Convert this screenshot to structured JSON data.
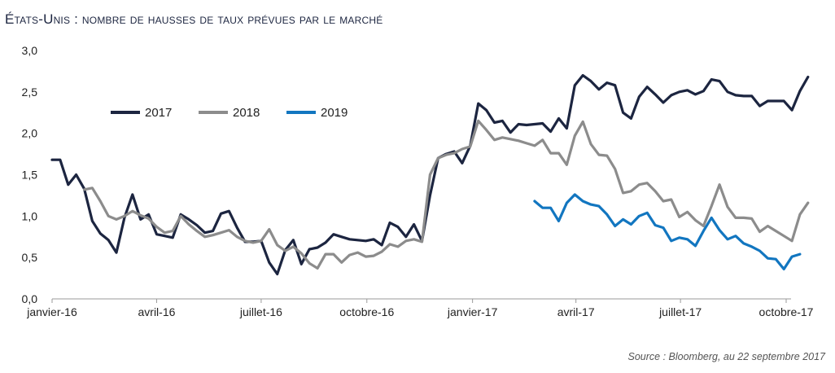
{
  "title": "États-Unis : nombre de hausses de taux prévues par le marché",
  "source": "Source : Bloomberg, au 22 septembre 2017",
  "chart_data": {
    "type": "line",
    "title": "États-Unis : nombre de hausses de taux prévues par le marché",
    "xlabel": "",
    "ylabel": "",
    "ylim": [
      0,
      3
    ],
    "yticks": [
      "0,0",
      "0,5",
      "1,0",
      "1,5",
      "2,0",
      "2,5",
      "3,0"
    ],
    "x_range": [
      "2016-01-01",
      "2017-10-01"
    ],
    "xticks": [
      {
        "date": "2016-01-01",
        "label": "janvier-16"
      },
      {
        "date": "2016-04-01",
        "label": "avril-16"
      },
      {
        "date": "2016-07-01",
        "label": "juillet-16"
      },
      {
        "date": "2016-10-01",
        "label": "octobre-16"
      },
      {
        "date": "2017-01-01",
        "label": "janvier-17"
      },
      {
        "date": "2017-04-01",
        "label": "avril-17"
      },
      {
        "date": "2017-07-01",
        "label": "juillet-17"
      },
      {
        "date": "2017-10-01",
        "label": "octobre-17"
      }
    ],
    "grid": false,
    "legend_position": "top-left",
    "series": [
      {
        "name": "2017",
        "color": "#1c2540",
        "points": [
          [
            "2016-01-01",
            1.68
          ],
          [
            "2016-01-08",
            1.68
          ],
          [
            "2016-01-15",
            1.38
          ],
          [
            "2016-01-22",
            1.5
          ],
          [
            "2016-01-29",
            1.33
          ],
          [
            "2016-02-05",
            0.94
          ],
          [
            "2016-02-12",
            0.79
          ],
          [
            "2016-02-19",
            0.71
          ],
          [
            "2016-02-26",
            0.56
          ],
          [
            "2016-03-04",
            0.98
          ],
          [
            "2016-03-11",
            1.26
          ],
          [
            "2016-03-18",
            0.96
          ],
          [
            "2016-03-25",
            1.02
          ],
          [
            "2016-04-01",
            0.78
          ],
          [
            "2016-04-08",
            0.76
          ],
          [
            "2016-04-15",
            0.74
          ],
          [
            "2016-04-22",
            1.02
          ],
          [
            "2016-04-29",
            0.96
          ],
          [
            "2016-05-06",
            0.89
          ],
          [
            "2016-05-13",
            0.8
          ],
          [
            "2016-05-20",
            0.82
          ],
          [
            "2016-05-27",
            1.03
          ],
          [
            "2016-06-03",
            1.06
          ],
          [
            "2016-06-10",
            0.86
          ],
          [
            "2016-06-17",
            0.69
          ],
          [
            "2016-06-24",
            0.69
          ],
          [
            "2016-07-01",
            0.7
          ],
          [
            "2016-07-08",
            0.44
          ],
          [
            "2016-07-15",
            0.3
          ],
          [
            "2016-07-22",
            0.59
          ],
          [
            "2016-07-29",
            0.71
          ],
          [
            "2016-08-05",
            0.42
          ],
          [
            "2016-08-12",
            0.6
          ],
          [
            "2016-08-19",
            0.62
          ],
          [
            "2016-08-26",
            0.68
          ],
          [
            "2016-09-02",
            0.78
          ],
          [
            "2016-09-09",
            0.75
          ],
          [
            "2016-09-16",
            0.72
          ],
          [
            "2016-09-23",
            0.71
          ],
          [
            "2016-09-30",
            0.7
          ],
          [
            "2016-10-07",
            0.72
          ],
          [
            "2016-10-14",
            0.65
          ],
          [
            "2016-10-21",
            0.92
          ],
          [
            "2016-10-28",
            0.87
          ],
          [
            "2016-11-04",
            0.75
          ],
          [
            "2016-11-11",
            0.9
          ],
          [
            "2016-11-18",
            0.7
          ],
          [
            "2016-11-25",
            1.25
          ],
          [
            "2016-12-02",
            1.7
          ],
          [
            "2016-12-09",
            1.75
          ],
          [
            "2016-12-16",
            1.78
          ],
          [
            "2016-12-23",
            1.64
          ],
          [
            "2016-12-30",
            1.85
          ],
          [
            "2017-01-06",
            2.36
          ],
          [
            "2017-01-13",
            2.28
          ],
          [
            "2017-01-20",
            2.13
          ],
          [
            "2017-01-27",
            2.15
          ],
          [
            "2017-02-03",
            2.01
          ],
          [
            "2017-02-10",
            2.11
          ],
          [
            "2017-02-17",
            2.1
          ],
          [
            "2017-02-24",
            2.11
          ],
          [
            "2017-03-03",
            2.12
          ],
          [
            "2017-03-10",
            2.02
          ],
          [
            "2017-03-17",
            2.18
          ],
          [
            "2017-03-24",
            2.06
          ],
          [
            "2017-03-31",
            2.58
          ],
          [
            "2017-04-07",
            2.7
          ],
          [
            "2017-04-14",
            2.63
          ],
          [
            "2017-04-21",
            2.53
          ],
          [
            "2017-04-28",
            2.61
          ],
          [
            "2017-05-05",
            2.58
          ],
          [
            "2017-05-12",
            2.25
          ],
          [
            "2017-05-19",
            2.18
          ],
          [
            "2017-05-26",
            2.44
          ],
          [
            "2017-06-02",
            2.56
          ],
          [
            "2017-06-09",
            2.47
          ],
          [
            "2017-06-16",
            2.37
          ],
          [
            "2017-06-23",
            2.46
          ],
          [
            "2017-06-30",
            2.5
          ],
          [
            "2017-07-07",
            2.52
          ],
          [
            "2017-07-14",
            2.47
          ],
          [
            "2017-07-21",
            2.51
          ],
          [
            "2017-07-28",
            2.65
          ],
          [
            "2017-08-04",
            2.63
          ],
          [
            "2017-08-11",
            2.5
          ],
          [
            "2017-08-18",
            2.46
          ],
          [
            "2017-08-25",
            2.45
          ],
          [
            "2017-09-01",
            2.45
          ],
          [
            "2017-09-08",
            2.33
          ],
          [
            "2017-09-15",
            2.39
          ],
          [
            "2017-09-22",
            2.39
          ],
          [
            "2017-09-29",
            2.39
          ],
          [
            "2017-10-06",
            2.28
          ],
          [
            "2017-10-13",
            2.51
          ],
          [
            "2017-10-20",
            2.68
          ]
        ]
      },
      {
        "name": "2018",
        "color": "#8c8c8c",
        "points": [
          [
            "2016-01-29",
            1.32
          ],
          [
            "2016-02-05",
            1.34
          ],
          [
            "2016-02-12",
            1.18
          ],
          [
            "2016-02-19",
            1.0
          ],
          [
            "2016-02-26",
            0.96
          ],
          [
            "2016-03-04",
            1.0
          ],
          [
            "2016-03-11",
            1.06
          ],
          [
            "2016-03-18",
            1.01
          ],
          [
            "2016-03-25",
            0.97
          ],
          [
            "2016-04-01",
            0.87
          ],
          [
            "2016-04-08",
            0.8
          ],
          [
            "2016-04-15",
            0.82
          ],
          [
            "2016-04-22",
            1.0
          ],
          [
            "2016-04-29",
            0.9
          ],
          [
            "2016-05-06",
            0.82
          ],
          [
            "2016-05-13",
            0.75
          ],
          [
            "2016-05-20",
            0.77
          ],
          [
            "2016-05-27",
            0.8
          ],
          [
            "2016-06-03",
            0.83
          ],
          [
            "2016-06-10",
            0.75
          ],
          [
            "2016-06-17",
            0.7
          ],
          [
            "2016-06-24",
            0.68
          ],
          [
            "2016-07-01",
            0.7
          ],
          [
            "2016-07-08",
            0.84
          ],
          [
            "2016-07-15",
            0.65
          ],
          [
            "2016-07-22",
            0.58
          ],
          [
            "2016-07-29",
            0.63
          ],
          [
            "2016-08-05",
            0.55
          ],
          [
            "2016-08-12",
            0.43
          ],
          [
            "2016-08-19",
            0.37
          ],
          [
            "2016-08-26",
            0.54
          ],
          [
            "2016-09-02",
            0.54
          ],
          [
            "2016-09-09",
            0.44
          ],
          [
            "2016-09-16",
            0.53
          ],
          [
            "2016-09-23",
            0.56
          ],
          [
            "2016-09-30",
            0.51
          ],
          [
            "2016-10-07",
            0.52
          ],
          [
            "2016-10-14",
            0.57
          ],
          [
            "2016-10-21",
            0.66
          ],
          [
            "2016-10-28",
            0.63
          ],
          [
            "2016-11-04",
            0.7
          ],
          [
            "2016-11-11",
            0.72
          ],
          [
            "2016-11-18",
            0.69
          ],
          [
            "2016-11-25",
            1.5
          ],
          [
            "2016-12-02",
            1.7
          ],
          [
            "2016-12-09",
            1.74
          ],
          [
            "2016-12-16",
            1.76
          ],
          [
            "2016-12-23",
            1.81
          ],
          [
            "2016-12-30",
            1.84
          ],
          [
            "2017-01-06",
            2.15
          ],
          [
            "2017-01-13",
            2.04
          ],
          [
            "2017-01-20",
            1.92
          ],
          [
            "2017-01-27",
            1.95
          ],
          [
            "2017-02-03",
            1.93
          ],
          [
            "2017-02-10",
            1.91
          ],
          [
            "2017-02-17",
            1.88
          ],
          [
            "2017-02-24",
            1.85
          ],
          [
            "2017-03-03",
            1.92
          ],
          [
            "2017-03-10",
            1.76
          ],
          [
            "2017-03-17",
            1.76
          ],
          [
            "2017-03-24",
            1.62
          ],
          [
            "2017-03-31",
            1.97
          ],
          [
            "2017-04-07",
            2.14
          ],
          [
            "2017-04-14",
            1.87
          ],
          [
            "2017-04-21",
            1.74
          ],
          [
            "2017-04-28",
            1.73
          ],
          [
            "2017-05-05",
            1.57
          ],
          [
            "2017-05-12",
            1.28
          ],
          [
            "2017-05-19",
            1.3
          ],
          [
            "2017-05-26",
            1.38
          ],
          [
            "2017-06-02",
            1.4
          ],
          [
            "2017-06-09",
            1.3
          ],
          [
            "2017-06-16",
            1.18
          ],
          [
            "2017-06-23",
            1.2
          ],
          [
            "2017-06-30",
            0.99
          ],
          [
            "2017-07-07",
            1.05
          ],
          [
            "2017-07-14",
            0.95
          ],
          [
            "2017-07-21",
            0.88
          ],
          [
            "2017-07-28",
            1.12
          ],
          [
            "2017-08-04",
            1.38
          ],
          [
            "2017-08-11",
            1.11
          ],
          [
            "2017-08-18",
            0.98
          ],
          [
            "2017-08-25",
            0.98
          ],
          [
            "2017-09-01",
            0.97
          ],
          [
            "2017-09-08",
            0.81
          ],
          [
            "2017-09-15",
            0.88
          ],
          [
            "2017-09-22",
            0.82
          ],
          [
            "2017-09-29",
            0.76
          ],
          [
            "2017-10-06",
            0.7
          ],
          [
            "2017-10-13",
            1.02
          ],
          [
            "2017-10-20",
            1.16
          ]
        ]
      },
      {
        "name": "2019",
        "color": "#1276c0",
        "points": [
          [
            "2017-02-24",
            1.18
          ],
          [
            "2017-03-03",
            1.1
          ],
          [
            "2017-03-10",
            1.1
          ],
          [
            "2017-03-17",
            0.94
          ],
          [
            "2017-03-24",
            1.16
          ],
          [
            "2017-03-31",
            1.26
          ],
          [
            "2017-04-07",
            1.18
          ],
          [
            "2017-04-14",
            1.14
          ],
          [
            "2017-04-21",
            1.12
          ],
          [
            "2017-04-28",
            1.02
          ],
          [
            "2017-05-05",
            0.88
          ],
          [
            "2017-05-12",
            0.96
          ],
          [
            "2017-05-19",
            0.9
          ],
          [
            "2017-05-26",
            1.0
          ],
          [
            "2017-06-02",
            1.04
          ],
          [
            "2017-06-09",
            0.89
          ],
          [
            "2017-06-16",
            0.86
          ],
          [
            "2017-06-23",
            0.7
          ],
          [
            "2017-06-30",
            0.74
          ],
          [
            "2017-07-07",
            0.72
          ],
          [
            "2017-07-14",
            0.64
          ],
          [
            "2017-07-21",
            0.82
          ],
          [
            "2017-07-28",
            0.98
          ],
          [
            "2017-08-04",
            0.83
          ],
          [
            "2017-08-11",
            0.72
          ],
          [
            "2017-08-18",
            0.76
          ],
          [
            "2017-08-25",
            0.67
          ],
          [
            "2017-09-01",
            0.63
          ],
          [
            "2017-09-08",
            0.58
          ],
          [
            "2017-09-15",
            0.49
          ],
          [
            "2017-09-22",
            0.48
          ],
          [
            "2017-09-29",
            0.36
          ],
          [
            "2017-10-06",
            0.51
          ],
          [
            "2017-10-13",
            0.54
          ]
        ]
      }
    ]
  }
}
